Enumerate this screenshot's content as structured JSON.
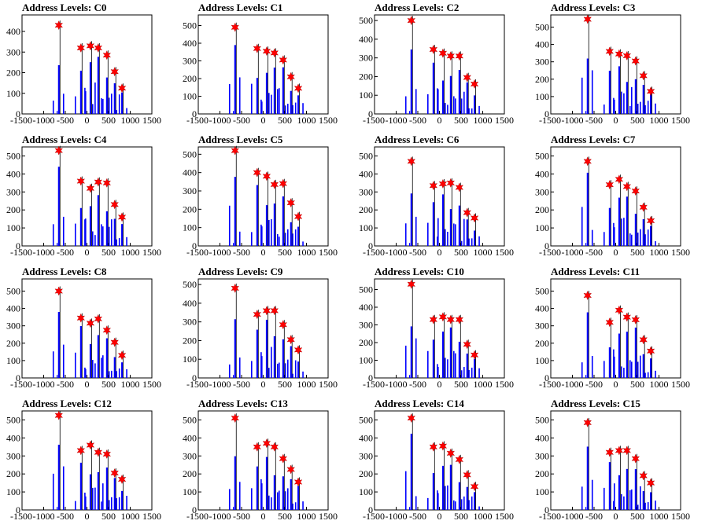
{
  "colors": {
    "histogram": "#0000ff",
    "peak_marker": "#ff0000",
    "axes": "#000000"
  },
  "chart_data": [
    {
      "type": "bar",
      "title": "Address Levels: C0",
      "xlim": [
        -1500,
        1500
      ],
      "ylim": [
        0,
        480
      ],
      "yticks": [
        0,
        100,
        200,
        300,
        400
      ],
      "xticks": [
        -1500,
        -1000,
        -500,
        0,
        500,
        1000,
        1500
      ],
      "xticklabels": [
        "-1500",
        "-1000",
        "-500",
        "0",
        "500",
        "1000",
        "1500"
      ],
      "peaks": [
        {
          "x": -650,
          "y": 430
        },
        {
          "x": -140,
          "y": 320
        },
        {
          "x": 80,
          "y": 330
        },
        {
          "x": 260,
          "y": 320
        },
        {
          "x": 460,
          "y": 285
        },
        {
          "x": 640,
          "y": 205
        },
        {
          "x": 810,
          "y": 125
        }
      ]
    },
    {
      "type": "bar",
      "title": "Address Levels: C1",
      "xlim": [
        -1500,
        1500
      ],
      "ylim": [
        0,
        560
      ],
      "yticks": [
        0,
        100,
        200,
        300,
        400,
        500
      ],
      "xticks": [
        -1500,
        -1000,
        -500,
        0,
        500,
        1000,
        1500
      ],
      "xticklabels": [
        "-1500",
        "-1000",
        "-500",
        "0",
        "500",
        "1000",
        "1500"
      ],
      "peaks": [
        {
          "x": -650,
          "y": 490
        },
        {
          "x": -140,
          "y": 370
        },
        {
          "x": 80,
          "y": 355
        },
        {
          "x": 260,
          "y": 345
        },
        {
          "x": 460,
          "y": 305
        },
        {
          "x": 640,
          "y": 210
        },
        {
          "x": 810,
          "y": 145
        }
      ]
    },
    {
      "type": "bar",
      "title": "Address Levels: C2",
      "xlim": [
        -1500,
        1500
      ],
      "ylim": [
        0,
        530
      ],
      "yticks": [
        0,
        100,
        200,
        300,
        400,
        500
      ],
      "xticks": [
        -1500,
        -1000,
        -500,
        0,
        500,
        1000,
        1500
      ],
      "xticklabels": [
        "-1500",
        "-1000",
        "-500",
        "0",
        "500",
        "1000",
        "1500"
      ],
      "peaks": [
        {
          "x": -650,
          "y": 500
        },
        {
          "x": -140,
          "y": 345
        },
        {
          "x": 80,
          "y": 325
        },
        {
          "x": 260,
          "y": 310
        },
        {
          "x": 460,
          "y": 310
        },
        {
          "x": 640,
          "y": 195
        },
        {
          "x": 810,
          "y": 160
        }
      ]
    },
    {
      "type": "bar",
      "title": "Address Levels: C3",
      "xlim": [
        -1500,
        1500
      ],
      "ylim": [
        0,
        570
      ],
      "yticks": [
        0,
        100,
        200,
        300,
        400,
        500
      ],
      "xticks": [
        -1500,
        -1000,
        -500,
        0,
        500,
        1000,
        1500
      ],
      "xticklabels": [
        "-1500",
        "-1000",
        "-500",
        "0",
        "500",
        "1000",
        "1500"
      ],
      "peaks": [
        {
          "x": -650,
          "y": 545
        },
        {
          "x": -140,
          "y": 360
        },
        {
          "x": 80,
          "y": 345
        },
        {
          "x": 260,
          "y": 335
        },
        {
          "x": 460,
          "y": 305
        },
        {
          "x": 640,
          "y": 220
        },
        {
          "x": 810,
          "y": 130
        }
      ]
    },
    {
      "type": "bar",
      "title": "Address Levels: C4",
      "xlim": [
        -1500,
        1500
      ],
      "ylim": [
        0,
        550
      ],
      "yticks": [
        0,
        100,
        200,
        300,
        400,
        500
      ],
      "xticks": [
        -1500,
        -1000,
        -500,
        0,
        500,
        1000,
        1500
      ],
      "xticklabels": [
        "-1500",
        "-1000",
        "-500",
        "0",
        "500",
        "1000",
        "1500"
      ],
      "peaks": [
        {
          "x": -650,
          "y": 530
        },
        {
          "x": -140,
          "y": 360
        },
        {
          "x": 80,
          "y": 320
        },
        {
          "x": 260,
          "y": 355
        },
        {
          "x": 460,
          "y": 350
        },
        {
          "x": 640,
          "y": 230
        },
        {
          "x": 810,
          "y": 160
        }
      ]
    },
    {
      "type": "bar",
      "title": "Address Levels: C5",
      "xlim": [
        -1500,
        1500
      ],
      "ylim": [
        0,
        540
      ],
      "yticks": [
        0,
        100,
        200,
        300,
        400,
        500
      ],
      "xticks": [
        -1500,
        -1000,
        -500,
        0,
        500,
        1000,
        1500
      ],
      "xticklabels": [
        "-1500",
        "-1000",
        "-500",
        "0",
        "500",
        "1000",
        "1500"
      ],
      "peaks": [
        {
          "x": -650,
          "y": 520
        },
        {
          "x": -140,
          "y": 400
        },
        {
          "x": 80,
          "y": 380
        },
        {
          "x": 260,
          "y": 335
        },
        {
          "x": 460,
          "y": 340
        },
        {
          "x": 640,
          "y": 235
        },
        {
          "x": 810,
          "y": 160
        }
      ]
    },
    {
      "type": "bar",
      "title": "Address Levels: C6",
      "xlim": [
        -1500,
        1500
      ],
      "ylim": [
        0,
        550
      ],
      "yticks": [
        0,
        100,
        200,
        300,
        400,
        500
      ],
      "xticks": [
        -1500,
        -1000,
        -500,
        0,
        500,
        1000,
        1500
      ],
      "xticklabels": [
        "-1500",
        "-1000",
        "-500",
        "0",
        "500",
        "1000",
        "1500"
      ],
      "peaks": [
        {
          "x": -650,
          "y": 470
        },
        {
          "x": -140,
          "y": 335
        },
        {
          "x": 80,
          "y": 345
        },
        {
          "x": 260,
          "y": 350
        },
        {
          "x": 460,
          "y": 325
        },
        {
          "x": 640,
          "y": 185
        },
        {
          "x": 810,
          "y": 155
        }
      ]
    },
    {
      "type": "bar",
      "title": "Address Levels: C7",
      "xlim": [
        -1500,
        1500
      ],
      "ylim": [
        0,
        550
      ],
      "yticks": [
        0,
        100,
        200,
        300,
        400,
        500
      ],
      "xticks": [
        -1500,
        -1000,
        -500,
        0,
        500,
        1000,
        1500
      ],
      "xticklabels": [
        "-1500",
        "-1000",
        "-500",
        "0",
        "500",
        "1000",
        "1500"
      ],
      "peaks": [
        {
          "x": -650,
          "y": 470
        },
        {
          "x": -140,
          "y": 340
        },
        {
          "x": 80,
          "y": 370
        },
        {
          "x": 260,
          "y": 330
        },
        {
          "x": 460,
          "y": 305
        },
        {
          "x": 640,
          "y": 215
        },
        {
          "x": 810,
          "y": 140
        }
      ]
    },
    {
      "type": "bar",
      "title": "Address Levels: C8",
      "xlim": [
        -1500,
        1500
      ],
      "ylim": [
        0,
        570
      ],
      "yticks": [
        0,
        100,
        200,
        300,
        400,
        500
      ],
      "xticks": [
        -1500,
        -1000,
        -500,
        0,
        500,
        1000,
        1500
      ],
      "xticklabels": [
        "-1500",
        "-1000",
        "-500",
        "0",
        "500",
        "1000",
        "1500"
      ],
      "peaks": [
        {
          "x": -650,
          "y": 500
        },
        {
          "x": -140,
          "y": 345
        },
        {
          "x": 80,
          "y": 315
        },
        {
          "x": 260,
          "y": 340
        },
        {
          "x": 460,
          "y": 275
        },
        {
          "x": 640,
          "y": 205
        },
        {
          "x": 810,
          "y": 130
        }
      ]
    },
    {
      "type": "bar",
      "title": "Address Levels: C9",
      "xlim": [
        -1500,
        1500
      ],
      "ylim": [
        0,
        530
      ],
      "yticks": [
        0,
        100,
        200,
        300,
        400,
        500
      ],
      "xticks": [
        -1500,
        -1000,
        -500,
        0,
        500,
        1000,
        1500
      ],
      "xticklabels": [
        "-1500",
        "-1000",
        "-500",
        "0",
        "500",
        "1000",
        "1500"
      ],
      "peaks": [
        {
          "x": -650,
          "y": 480
        },
        {
          "x": -140,
          "y": 340
        },
        {
          "x": 80,
          "y": 360
        },
        {
          "x": 260,
          "y": 360
        },
        {
          "x": 460,
          "y": 285
        },
        {
          "x": 640,
          "y": 205
        },
        {
          "x": 810,
          "y": 150
        }
      ]
    },
    {
      "type": "bar",
      "title": "Address Levels: C10",
      "xlim": [
        -1500,
        1500
      ],
      "ylim": [
        0,
        560
      ],
      "yticks": [
        0,
        100,
        200,
        300,
        400,
        500
      ],
      "xticks": [
        -1500,
        -1000,
        -500,
        0,
        500,
        1000,
        1500
      ],
      "xticklabels": [
        "-1500",
        "-1000",
        "-500",
        "0",
        "500",
        "1000",
        "1500"
      ],
      "peaks": [
        {
          "x": -650,
          "y": 530
        },
        {
          "x": -140,
          "y": 330
        },
        {
          "x": 80,
          "y": 345
        },
        {
          "x": 260,
          "y": 330
        },
        {
          "x": 460,
          "y": 330
        },
        {
          "x": 640,
          "y": 190
        },
        {
          "x": 810,
          "y": 130
        }
      ]
    },
    {
      "type": "bar",
      "title": "Address Levels: C11",
      "xlim": [
        -1500,
        1500
      ],
      "ylim": [
        0,
        570
      ],
      "yticks": [
        0,
        100,
        200,
        300,
        400,
        500
      ],
      "xticks": [
        -1500,
        -1000,
        -500,
        0,
        500,
        1000,
        1500
      ],
      "xticklabels": [
        "-1500",
        "-1000",
        "-500",
        "0",
        "500",
        "1000",
        "1500"
      ],
      "peaks": [
        {
          "x": -650,
          "y": 475
        },
        {
          "x": -140,
          "y": 320
        },
        {
          "x": 80,
          "y": 390
        },
        {
          "x": 260,
          "y": 350
        },
        {
          "x": 460,
          "y": 335
        },
        {
          "x": 640,
          "y": 220
        },
        {
          "x": 810,
          "y": 155
        }
      ]
    },
    {
      "type": "bar",
      "title": "Address Levels: C12",
      "xlim": [
        -1500,
        1500
      ],
      "ylim": [
        0,
        550
      ],
      "yticks": [
        0,
        100,
        200,
        300,
        400,
        500
      ],
      "xticks": [
        -1500,
        -1000,
        -500,
        0,
        500,
        1000,
        1500
      ],
      "xticklabels": [
        "-1500",
        "-1000",
        "-500",
        "0",
        "500",
        "1000",
        "1500"
      ],
      "peaks": [
        {
          "x": -650,
          "y": 525
        },
        {
          "x": -140,
          "y": 330
        },
        {
          "x": 80,
          "y": 360
        },
        {
          "x": 260,
          "y": 320
        },
        {
          "x": 460,
          "y": 310
        },
        {
          "x": 640,
          "y": 205
        },
        {
          "x": 810,
          "y": 170
        }
      ]
    },
    {
      "type": "bar",
      "title": "Address Levels: C13",
      "xlim": [
        -1500,
        1500
      ],
      "ylim": [
        0,
        550
      ],
      "yticks": [
        0,
        100,
        200,
        300,
        400,
        500
      ],
      "xticks": [
        -1500,
        -1000,
        -500,
        0,
        500,
        1000,
        1500
      ],
      "xticklabels": [
        "-1500",
        "-1000",
        "-500",
        "0",
        "500",
        "1000",
        "1500"
      ],
      "peaks": [
        {
          "x": -650,
          "y": 510
        },
        {
          "x": -140,
          "y": 350
        },
        {
          "x": 80,
          "y": 370
        },
        {
          "x": 260,
          "y": 350
        },
        {
          "x": 460,
          "y": 285
        },
        {
          "x": 640,
          "y": 225
        },
        {
          "x": 810,
          "y": 155
        }
      ]
    },
    {
      "type": "bar",
      "title": "Address Levels: C14",
      "xlim": [
        -1500,
        1500
      ],
      "ylim": [
        0,
        550
      ],
      "yticks": [
        0,
        100,
        200,
        300,
        400,
        500
      ],
      "xticks": [
        -1500,
        -1000,
        -500,
        0,
        500,
        1000,
        1500
      ],
      "xticklabels": [
        "-1500",
        "-1000",
        "-500",
        "0",
        "500",
        "1000",
        "1500"
      ],
      "peaks": [
        {
          "x": -650,
          "y": 510
        },
        {
          "x": -140,
          "y": 350
        },
        {
          "x": 80,
          "y": 355
        },
        {
          "x": 260,
          "y": 315
        },
        {
          "x": 460,
          "y": 280
        },
        {
          "x": 640,
          "y": 195
        },
        {
          "x": 810,
          "y": 130
        }
      ]
    },
    {
      "type": "bar",
      "title": "Address Levels: C15",
      "xlim": [
        -1500,
        1500
      ],
      "ylim": [
        0,
        550
      ],
      "yticks": [
        0,
        100,
        200,
        300,
        400,
        500
      ],
      "xticks": [
        -1500,
        -1000,
        -500,
        0,
        500,
        1000,
        1500
      ],
      "xticklabels": [
        "-1500",
        "-1000",
        "-500",
        "0",
        "500",
        "1000",
        "1500"
      ],
      "peaks": [
        {
          "x": -650,
          "y": 485
        },
        {
          "x": -140,
          "y": 320
        },
        {
          "x": 80,
          "y": 330
        },
        {
          "x": 260,
          "y": 330
        },
        {
          "x": 460,
          "y": 285
        },
        {
          "x": 640,
          "y": 190
        },
        {
          "x": 810,
          "y": 150
        }
      ]
    }
  ]
}
